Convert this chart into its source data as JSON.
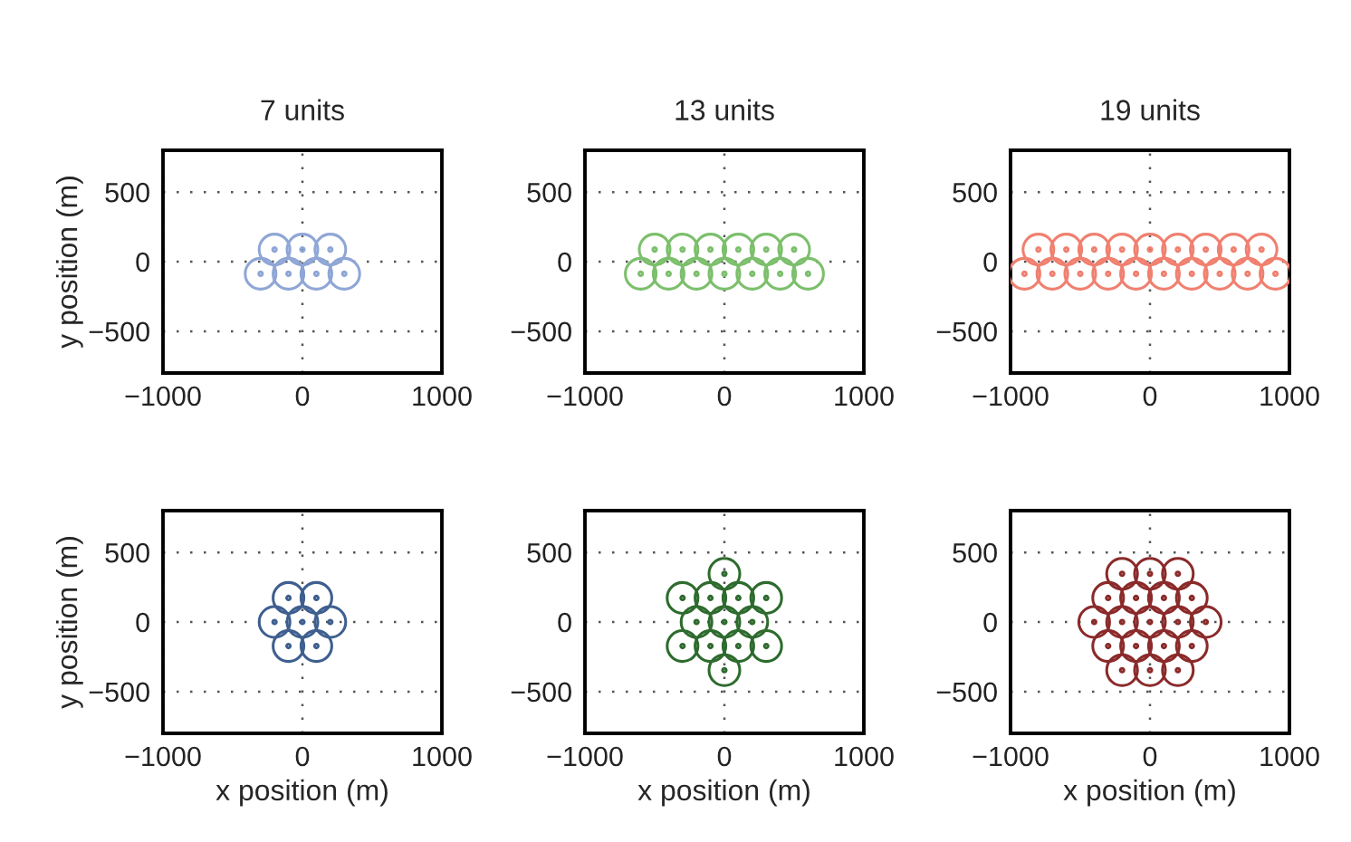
{
  "chart_data": [
    {
      "type": "scatter",
      "title": "7 units",
      "ylabel": "y position (m)",
      "xlim": [
        -1000,
        1000
      ],
      "ylim": [
        -800,
        800
      ],
      "xticks": [
        -1000,
        0,
        1000
      ],
      "yticks": [
        -500,
        0,
        500
      ],
      "grid": true,
      "marker": "circle",
      "series": [
        {
          "color": "#8fa6d6",
          "x": [
            -300,
            -100,
            100,
            300,
            -200,
            0,
            200
          ],
          "values": [
            -87,
            -87,
            -87,
            -87,
            87,
            87,
            87
          ]
        }
      ]
    },
    {
      "type": "scatter",
      "title": "13 units",
      "xlim": [
        -1000,
        1000
      ],
      "ylim": [
        -800,
        800
      ],
      "xticks": [
        -1000,
        0,
        1000
      ],
      "yticks": [
        -500,
        0,
        500
      ],
      "grid": true,
      "marker": "circle",
      "series": [
        {
          "color": "#7cbf6c",
          "x": [
            -600,
            -400,
            -200,
            0,
            200,
            400,
            600,
            -500,
            -300,
            -100,
            100,
            300,
            500
          ],
          "values": [
            -87,
            -87,
            -87,
            -87,
            -87,
            -87,
            -87,
            87,
            87,
            87,
            87,
            87,
            87
          ]
        }
      ]
    },
    {
      "type": "scatter",
      "title": "19 units",
      "xlim": [
        -1000,
        1000
      ],
      "ylim": [
        -800,
        800
      ],
      "xticks": [
        -1000,
        0,
        1000
      ],
      "yticks": [
        -500,
        0,
        500
      ],
      "grid": true,
      "marker": "circle",
      "series": [
        {
          "color": "#f08070",
          "x": [
            -900,
            -700,
            -500,
            -300,
            -100,
            100,
            300,
            500,
            700,
            900,
            -800,
            -600,
            -400,
            -200,
            0,
            200,
            400,
            600,
            800
          ],
          "values": [
            -87,
            -87,
            -87,
            -87,
            -87,
            -87,
            -87,
            -87,
            -87,
            -87,
            87,
            87,
            87,
            87,
            87,
            87,
            87,
            87,
            87
          ]
        }
      ]
    },
    {
      "type": "scatter",
      "xlabel": "x position (m)",
      "ylabel": "y position (m)",
      "xlim": [
        -1000,
        1000
      ],
      "ylim": [
        -800,
        800
      ],
      "xticks": [
        -1000,
        0,
        1000
      ],
      "yticks": [
        -500,
        0,
        500
      ],
      "grid": true,
      "marker": "circle",
      "series": [
        {
          "color": "#3e5f8f",
          "x": [
            0,
            -200,
            200,
            -100,
            100,
            -100,
            100
          ],
          "values": [
            0,
            0,
            0,
            173,
            173,
            -173,
            -173
          ]
        }
      ]
    },
    {
      "type": "scatter",
      "xlabel": "x position (m)",
      "xlim": [
        -1000,
        1000
      ],
      "ylim": [
        -800,
        800
      ],
      "xticks": [
        -1000,
        0,
        1000
      ],
      "yticks": [
        -500,
        0,
        500
      ],
      "grid": true,
      "marker": "circle",
      "series": [
        {
          "color": "#2e6b2e",
          "x": [
            0,
            -300,
            -100,
            100,
            300,
            -200,
            0,
            200,
            -300,
            -100,
            100,
            300,
            0
          ],
          "values": [
            346,
            173,
            173,
            173,
            173,
            0,
            0,
            0,
            -173,
            -173,
            -173,
            -173,
            -346
          ]
        }
      ]
    },
    {
      "type": "scatter",
      "xlabel": "x position (m)",
      "xlim": [
        -1000,
        1000
      ],
      "ylim": [
        -800,
        800
      ],
      "xticks": [
        -1000,
        0,
        1000
      ],
      "yticks": [
        -500,
        0,
        500
      ],
      "grid": true,
      "marker": "circle",
      "series": [
        {
          "color": "#8b2a2a",
          "x": [
            -200,
            0,
            200,
            -300,
            -100,
            100,
            300,
            -400,
            -200,
            0,
            200,
            400,
            -300,
            -100,
            100,
            300,
            -200,
            0,
            200
          ],
          "values": [
            346,
            346,
            346,
            173,
            173,
            173,
            173,
            0,
            0,
            0,
            0,
            0,
            -173,
            -173,
            -173,
            -173,
            -346,
            -346,
            -346
          ]
        }
      ]
    }
  ]
}
